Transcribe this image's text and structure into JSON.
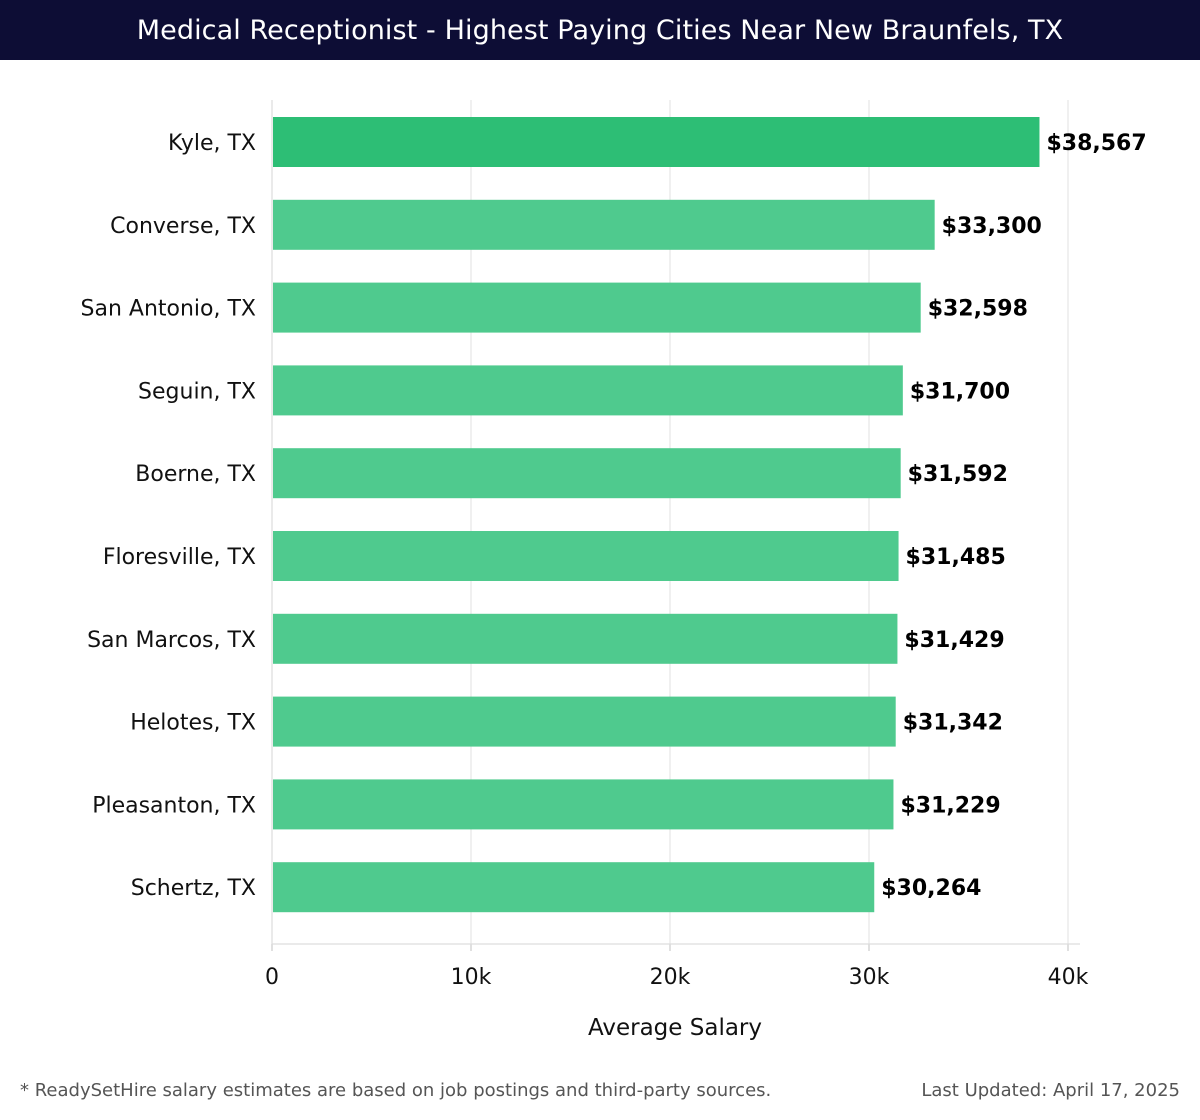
{
  "title": "Medical Receptionist - Highest Paying Cities Near New Braunfels, TX",
  "colors": {
    "header_bg": "#0d0d35",
    "top_bar": "#2dbe75",
    "bar": "#4fca8e",
    "grid": "#e6e6e6"
  },
  "chart_data": {
    "type": "bar",
    "orientation": "horizontal",
    "categories": [
      "Kyle, TX",
      "Converse, TX",
      "San Antonio, TX",
      "Seguin, TX",
      "Boerne, TX",
      "Floresville, TX",
      "San Marcos, TX",
      "Helotes, TX",
      "Pleasanton, TX",
      "Schertz, TX"
    ],
    "values": [
      38567,
      33300,
      32598,
      31700,
      31592,
      31485,
      31429,
      31342,
      31229,
      30264
    ],
    "value_labels": [
      "$38,567",
      "$33,300",
      "$32,598",
      "$31,700",
      "$31,592",
      "$31,485",
      "$31,429",
      "$31,342",
      "$31,229",
      "$30,264"
    ],
    "xlabel": "Average Salary",
    "ylabel": "",
    "xlim": [
      0,
      40000
    ],
    "xticks": [
      0,
      10000,
      20000,
      30000,
      40000
    ],
    "xtick_labels": [
      "0",
      "10k",
      "20k",
      "30k",
      "40k"
    ],
    "grid": "vertical",
    "legend": "none"
  },
  "footer": {
    "note": "* ReadySetHire salary estimates are based on job postings and third-party sources.",
    "updated": "Last Updated: April 17, 2025"
  }
}
